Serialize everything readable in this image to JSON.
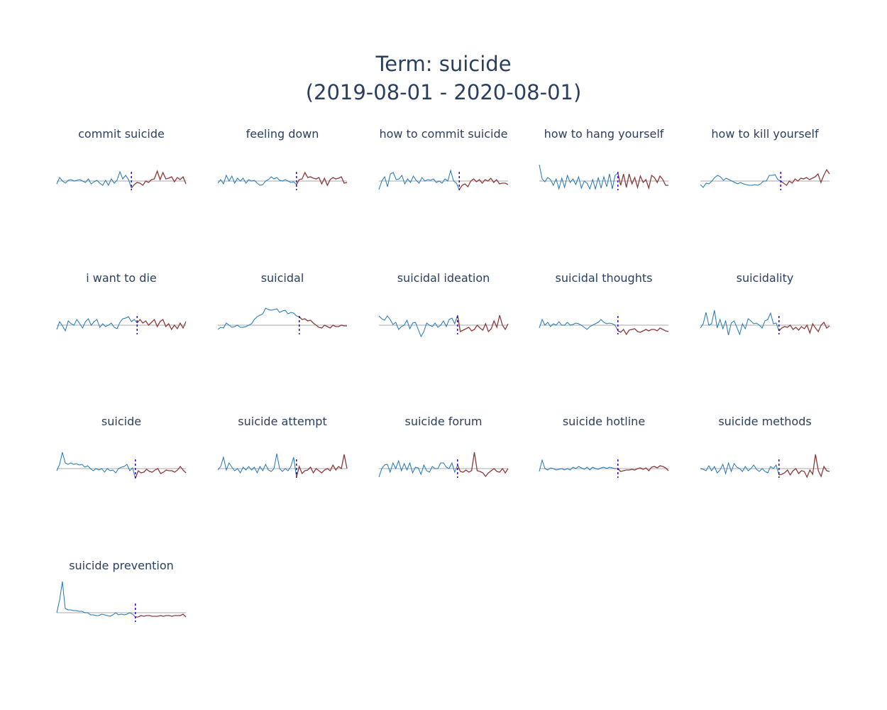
{
  "chart_data": {
    "type": "line",
    "title": "Term: suicide",
    "subtitle": "(2019-08-01 - 2020-08-01)",
    "colors": {
      "before": "#1f77b4",
      "after": "#8b3a3a",
      "baseline": "#bbbbbb",
      "event_marker": "#3300cc",
      "text": "#2a3f5f"
    },
    "legend": "none",
    "grid": false,
    "panels": [
      {
        "name": "commit suicide",
        "event_index": 26,
        "values": [
          -0.4,
          0.5,
          0.0,
          -0.3,
          0.1,
          0.2,
          0.0,
          0.1,
          0.2,
          0.0,
          -0.2,
          0.3,
          -0.4,
          -0.1,
          0.1,
          -0.3,
          -0.6,
          0.1,
          -0.6,
          0.3,
          -0.3,
          0.1,
          1.3,
          0.3,
          0.8,
          0.2,
          -1.0,
          -0.5,
          -0.2,
          -0.3,
          -0.6,
          0.0,
          -0.2,
          0.2,
          0.3,
          1.4,
          0.2,
          1.2,
          0.3,
          0.4,
          0.6,
          -0.1,
          0.5,
          0.2,
          0.6,
          -0.4
        ]
      },
      {
        "name": "feeling down",
        "event_index": 28,
        "values": [
          -0.3,
          0.2,
          -0.4,
          0.8,
          0.0,
          0.7,
          -0.3,
          0.4,
          0.0,
          0.4,
          -0.3,
          0.2,
          0.0,
          0.1,
          -0.3,
          -0.6,
          -0.5,
          0.0,
          0.2,
          0.6,
          0.3,
          0.5,
          0.1,
          0.0,
          0.2,
          0.0,
          -0.2,
          -0.1,
          -0.5,
          0.2,
          0.3,
          1.2,
          0.5,
          0.6,
          0.4,
          0.3,
          0.5,
          -0.4,
          0.4,
          -0.6,
          0.2,
          0.5,
          0.3,
          0.4,
          0.6,
          -0.3,
          -0.2
        ]
      },
      {
        "name": "how to commit suicide",
        "event_index": 28,
        "values": [
          -1.2,
          0.0,
          0.6,
          -0.8,
          1.0,
          1.2,
          0.2,
          0.3,
          0.8,
          -0.4,
          0.3,
          -0.2,
          0.7,
          0.1,
          -0.3,
          0.5,
          0.0,
          0.2,
          0.1,
          0.3,
          -0.2,
          0.0,
          -0.3,
          0.3,
          0.0,
          1.5,
          0.0,
          -0.3,
          -1.2,
          -0.6,
          -0.4,
          -0.8,
          0.0,
          0.3,
          -0.1,
          0.2,
          -0.3,
          0.2,
          0.0,
          0.4,
          -0.2,
          0.2,
          -0.4,
          -0.3,
          -0.3,
          -0.5
        ]
      },
      {
        "name": "how to hang yourself",
        "event_index": 28,
        "values": [
          2.3,
          0.3,
          -0.1,
          0.5,
          0.2,
          -0.6,
          0.3,
          -1.1,
          0.4,
          -0.9,
          0.8,
          -0.2,
          0.3,
          -0.5,
          0.6,
          -1.0,
          0.0,
          -0.3,
          -1.1,
          0.2,
          -1.1,
          0.5,
          -1.0,
          0.6,
          -0.8,
          1.0,
          -1.1,
          0.8,
          1.1,
          -0.6,
          1.0,
          -0.9,
          1.0,
          -0.4,
          0.5,
          -0.9,
          0.7,
          -0.2,
          0.2,
          -1.0,
          0.8,
          0.5,
          -0.2,
          0.7,
          0.2,
          -0.6,
          -0.6
        ]
      },
      {
        "name": "how to kill yourself",
        "event_index": 28,
        "values": [
          -0.5,
          -0.9,
          -0.3,
          -0.4,
          0.0,
          0.5,
          0.8,
          0.6,
          0.1,
          0.4,
          0.2,
          0.0,
          -0.2,
          -0.4,
          -0.2,
          -0.4,
          -0.5,
          -0.6,
          -0.6,
          -0.5,
          -0.6,
          -0.4,
          0.0,
          0.0,
          0.8,
          0.8,
          0.9,
          0.2,
          0.0,
          -0.3,
          -0.6,
          0.0,
          -0.3,
          0.3,
          0.0,
          0.4,
          0.3,
          0.5,
          0.2,
          0.4,
          0.6,
          1.0,
          -0.2,
          0.8,
          1.6,
          1.0
        ]
      },
      {
        "name": "i want to die",
        "event_index": 28,
        "values": [
          -0.6,
          0.5,
          -0.1,
          -0.8,
          0.6,
          0.2,
          0.0,
          0.8,
          0.2,
          -0.4,
          0.5,
          0.9,
          0.0,
          0.5,
          0.8,
          -0.3,
          0.2,
          -0.2,
          0.0,
          0.3,
          -0.3,
          -0.5,
          0.4,
          0.9,
          1.0,
          1.2,
          0.5,
          0.8,
          0.3,
          0.8,
          0.3,
          0.6,
          0.0,
          0.4,
          0.8,
          -0.2,
          0.5,
          0.8,
          -0.2,
          0.2,
          -0.6,
          0.0,
          -0.5,
          0.3,
          -0.4,
          0.5
        ]
      },
      {
        "name": "suicidal",
        "event_index": 29,
        "values": [
          -0.6,
          -0.3,
          -0.4,
          0.3,
          0.0,
          -0.3,
          -0.2,
          0.0,
          -0.3,
          -0.3,
          -0.2,
          0.0,
          0.2,
          0.8,
          1.2,
          1.4,
          1.6,
          2.4,
          2.2,
          2.1,
          2.2,
          2.3,
          1.8,
          2.0,
          2.1,
          1.6,
          1.8,
          1.7,
          1.3,
          1.2,
          0.8,
          0.9,
          0.6,
          0.7,
          0.3,
          0.0,
          -0.3,
          -0.4,
          0.0,
          -0.2,
          -0.4,
          0.0,
          -0.2,
          -0.2,
          0.0,
          -0.1,
          -0.1
        ]
      },
      {
        "name": "suicidal ideation",
        "event_index": 28,
        "values": [
          1.3,
          0.9,
          0.7,
          1.3,
          0.8,
          0.1,
          0.4,
          -0.6,
          -0.2,
          0.0,
          0.7,
          -0.5,
          0.3,
          0.4,
          -0.6,
          -1.6,
          -0.9,
          0.3,
          0.0,
          -0.2,
          0.3,
          -0.3,
          0.0,
          0.6,
          -0.2,
          0.8,
          1.0,
          0.2,
          1.4,
          -0.9,
          -0.7,
          -0.5,
          -0.3,
          -0.8,
          -0.6,
          0.0,
          -0.4,
          -0.7,
          0.2,
          -0.9,
          -0.5,
          0.6,
          -0.3,
          1.4,
          0.0,
          -0.6,
          0.2
        ]
      },
      {
        "name": "suicidal thoughts",
        "event_index": 28,
        "values": [
          -0.4,
          0.8,
          0.0,
          0.4,
          -0.2,
          0.2,
          0.0,
          0.5,
          0.0,
          0.0,
          0.4,
          0.0,
          0.1,
          0.3,
          0.2,
          0.0,
          -0.3,
          -0.6,
          -0.2,
          0.0,
          0.2,
          0.4,
          0.8,
          0.4,
          0.2,
          0.3,
          0.2,
          0.0,
          -0.8,
          -1.0,
          -0.6,
          -1.3,
          -0.7,
          -0.6,
          -0.5,
          -0.9,
          -1.0,
          -0.8,
          -0.6,
          -0.8,
          -0.6,
          -0.6,
          -0.8,
          -0.4,
          -0.6,
          -0.8,
          -0.9
        ]
      },
      {
        "name": "suicidality",
        "event_index": 28,
        "values": [
          -0.4,
          0.2,
          1.8,
          0.0,
          0.2,
          2.1,
          -0.4,
          0.8,
          -0.5,
          0.6,
          -1.4,
          0.3,
          0.6,
          -0.3,
          -1.3,
          0.2,
          -0.5,
          0.9,
          0.6,
          0.2,
          0.3,
          0.0,
          -0.4,
          0.6,
          0.8,
          1.7,
          0.2,
          0.3,
          -0.8,
          -0.4,
          -0.2,
          -0.3,
          0.0,
          -0.6,
          -0.3,
          -0.7,
          -0.2,
          -0.5,
          0.0,
          -1.1,
          0.2,
          -0.4,
          -0.9,
          0.0,
          0.4,
          -0.4,
          -0.1
        ]
      },
      {
        "name": "suicide",
        "event_index": 28,
        "values": [
          -0.3,
          0.6,
          2.3,
          0.8,
          0.6,
          0.8,
          0.6,
          0.7,
          0.5,
          0.6,
          0.2,
          0.4,
          0.0,
          -0.3,
          0.0,
          -0.2,
          0.0,
          -0.5,
          0.0,
          -0.3,
          -0.2,
          -0.6,
          0.0,
          0.2,
          0.3,
          0.6,
          -0.3,
          0.1,
          -1.4,
          -0.3,
          -0.6,
          -0.5,
          -0.1,
          -0.4,
          -0.5,
          -0.2,
          0.0,
          -0.7,
          -0.5,
          -0.2,
          -0.3,
          -0.3,
          -0.5,
          -0.2,
          0.3,
          -0.2,
          -0.6
        ]
      },
      {
        "name": "suicide attempt",
        "event_index": 28,
        "values": [
          -0.2,
          0.3,
          1.6,
          -0.2,
          0.8,
          0.2,
          -0.3,
          0.0,
          -0.6,
          0.2,
          -0.2,
          0.3,
          -0.2,
          0.2,
          -0.6,
          0.3,
          -0.3,
          0.6,
          -0.2,
          -0.4,
          0.0,
          2.1,
          0.0,
          -0.4,
          0.0,
          -0.3,
          0.3,
          1.6,
          -1.2,
          0.3,
          -0.7,
          -0.3,
          -0.2,
          0.2,
          -0.6,
          0.0,
          -0.3,
          -0.6,
          -0.2,
          0.0,
          -0.3,
          0.5,
          -0.2,
          0.3,
          0.0,
          2.0,
          0.0
        ]
      },
      {
        "name": "suicide forum",
        "event_index": 28,
        "values": [
          -1.2,
          0.0,
          0.5,
          0.6,
          -0.5,
          0.8,
          0.0,
          1.1,
          -0.3,
          0.7,
          -0.2,
          0.8,
          -0.6,
          0.2,
          0.1,
          -0.8,
          0.5,
          -0.3,
          -0.5,
          0.3,
          0.0,
          0.0,
          0.8,
          0.8,
          0.2,
          0.0,
          0.8,
          -0.5,
          0.5,
          -0.4,
          -0.5,
          -0.2,
          -0.5,
          -0.3,
          2.3,
          -0.3,
          -0.4,
          -0.6,
          -1.1,
          -0.6,
          -0.3,
          0.0,
          -0.4,
          -0.5,
          0.0,
          -0.6,
          0.0
        ]
      },
      {
        "name": "suicide hotline",
        "event_index": 28,
        "values": [
          -0.4,
          1.2,
          0.0,
          -0.2,
          0.1,
          0.0,
          -0.2,
          -0.1,
          0.0,
          -0.2,
          0.0,
          -0.2,
          0.2,
          0.0,
          0.3,
          0.1,
          -0.1,
          0.2,
          -0.2,
          0.2,
          0.0,
          -0.1,
          0.1,
          0.2,
          0.0,
          0.2,
          0.1,
          0.0,
          0.0,
          -0.4,
          -0.3,
          -0.2,
          -0.2,
          -0.1,
          -0.2,
          0.0,
          0.1,
          -0.1,
          0.1,
          -0.3,
          0.2,
          0.3,
          0.1,
          0.4,
          0.3,
          0.1,
          -0.3
        ]
      },
      {
        "name": "suicide methods",
        "event_index": 28,
        "values": [
          0.0,
          -0.1,
          -0.3,
          0.4,
          -0.3,
          0.3,
          -0.6,
          -0.2,
          0.6,
          -0.7,
          0.8,
          -0.4,
          0.7,
          0.2,
          0.0,
          -0.4,
          0.3,
          -0.3,
          0.0,
          0.5,
          -0.1,
          -0.4,
          0.0,
          -0.4,
          -0.6,
          0.3,
          0.0,
          0.5,
          -0.9,
          -0.8,
          -0.6,
          -0.2,
          -0.9,
          -0.3,
          0.0,
          -0.7,
          -0.3,
          -0.4,
          -1.2,
          -0.2,
          -0.8,
          2.0,
          -0.3,
          -1.1,
          0.3,
          -0.3,
          -0.4
        ]
      },
      {
        "name": "suicide prevention",
        "event_index": 28,
        "values": [
          0.0,
          1.8,
          4.4,
          0.6,
          0.4,
          0.4,
          0.3,
          0.3,
          0.2,
          0.2,
          0.0,
          0.0,
          -0.3,
          -0.3,
          -0.4,
          -0.4,
          -0.2,
          -0.3,
          -0.4,
          -0.5,
          -0.3,
          0.0,
          -0.3,
          -0.2,
          -0.3,
          -0.2,
          0.0,
          -0.2,
          -0.6,
          -0.6,
          -0.4,
          -0.5,
          -0.4,
          -0.4,
          -0.5,
          -0.5,
          -0.5,
          -0.4,
          -0.5,
          -0.4,
          -0.4,
          -0.5,
          -0.4,
          -0.4,
          -0.4,
          -0.2,
          -0.6
        ]
      }
    ]
  }
}
